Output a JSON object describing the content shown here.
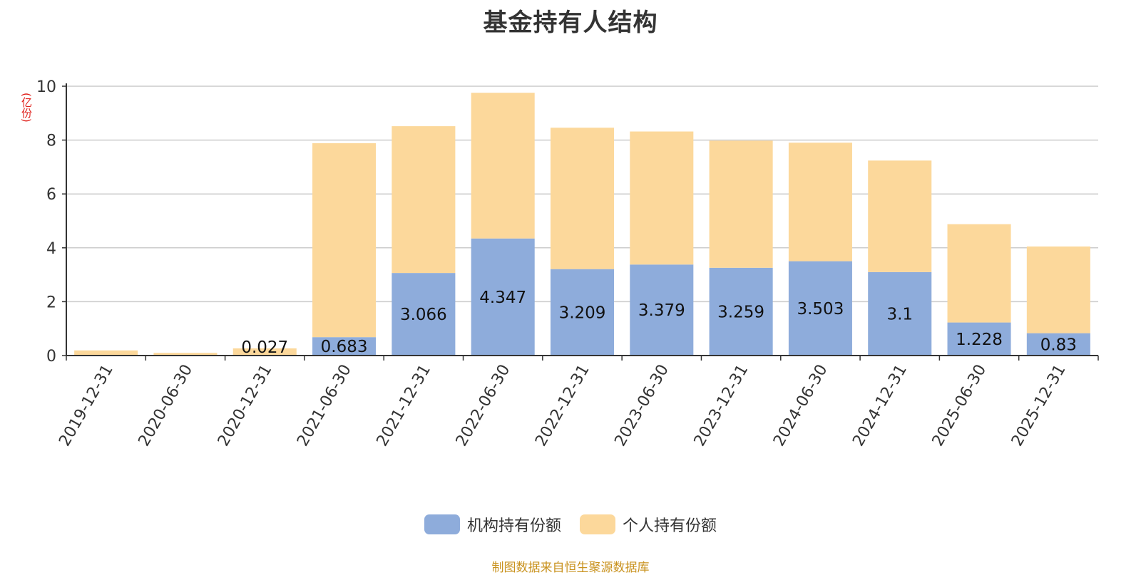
{
  "title": "基金持有人结构",
  "y_unit": "(亿份)",
  "source": "制图数据来自恒生聚源数据库",
  "colors": {
    "institutional": "#8eacdb",
    "individual": "#fcd89b",
    "grid": "#cccccc",
    "axis": "#333333"
  },
  "chart_data": {
    "type": "bar",
    "stacked": true,
    "title": "基金持有人结构",
    "ylabel": "(亿份)",
    "ylim": [
      0,
      10
    ],
    "yticks": [
      0,
      2,
      4,
      6,
      8,
      10
    ],
    "grid": true,
    "legend_position": "bottom-center",
    "categories": [
      "2019-12-31",
      "2020-06-30",
      "2020-12-31",
      "2021-06-30",
      "2021-12-31",
      "2022-06-30",
      "2022-12-31",
      "2023-06-30",
      "2023-12-31",
      "2024-06-30",
      "2024-12-31",
      "2025-06-30",
      "2025-12-31"
    ],
    "series": [
      {
        "name": "机构持有份额",
        "color": "#8eacdb",
        "values": [
          0,
          0,
          0.027,
          0.683,
          3.066,
          4.347,
          3.209,
          3.379,
          3.259,
          3.503,
          3.1,
          1.228,
          0.83
        ],
        "labels": [
          "",
          "",
          "0.027",
          "0.683",
          "3.066",
          "4.347",
          "3.209",
          "3.379",
          "3.259",
          "3.503",
          "3.1",
          "1.228",
          "0.83"
        ]
      },
      {
        "name": "个人持有份额",
        "color": "#fcd89b",
        "values": [
          0.19,
          0.1,
          0.24,
          7.2,
          5.45,
          5.41,
          5.25,
          4.94,
          4.72,
          4.4,
          4.14,
          3.65,
          3.22
        ]
      }
    ]
  }
}
